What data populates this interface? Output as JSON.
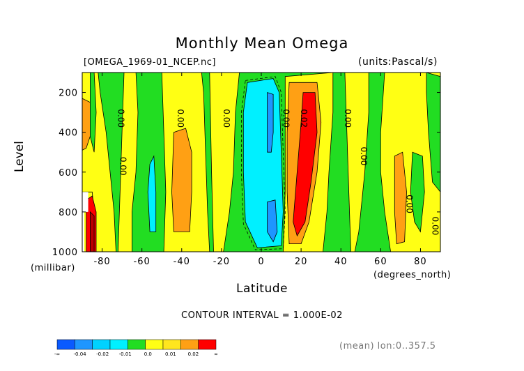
{
  "chart_data": {
    "type": "heatmap",
    "title": "Monthly Mean Omega",
    "file_label": "[OMEGA_1969-01_NCEP.nc]",
    "units_label": "(units:Pascal/s)",
    "xlabel": "Latitude",
    "xunit": "(degrees_north)",
    "ylabel": "Level",
    "yunit": "(millibar)",
    "xlim": [
      -90,
      90
    ],
    "ylim": [
      1000,
      100
    ],
    "x_ticks": [
      -80,
      -60,
      -40,
      -20,
      0,
      20,
      40,
      60,
      80
    ],
    "x_tick_labels": [
      "-80",
      "-60",
      "-40",
      "-20",
      "0",
      "20",
      "40",
      "60",
      "80"
    ],
    "y_ticks": [
      200,
      400,
      600,
      800,
      1000
    ],
    "y_tick_labels": [
      "200",
      "400",
      "600",
      "800",
      "1000"
    ],
    "contour_interval_label": "CONTOUR INTERVAL = 1.000E-02",
    "footer_label": "(mean) lon:0..357.5",
    "contour_labels": [
      {
        "lat": -72,
        "level": 330,
        "text": "0.00"
      },
      {
        "lat": -71,
        "level": 570,
        "text": "0.00"
      },
      {
        "lat": -42,
        "level": 330,
        "text": "0.00"
      },
      {
        "lat": -19,
        "level": 330,
        "text": "0.00"
      },
      {
        "lat": 11,
        "level": 330,
        "text": "0.00"
      },
      {
        "lat": 20,
        "level": 330,
        "text": "0.02"
      },
      {
        "lat": 42,
        "level": 330,
        "text": "0.00"
      },
      {
        "lat": 50,
        "level": 520,
        "text": "0.00"
      },
      {
        "lat": 73,
        "level": 760,
        "text": "0.00"
      },
      {
        "lat": 86,
        "level": 870,
        "text": "0.00"
      }
    ],
    "colorbar": {
      "colors": [
        "#0a5aff",
        "#1e96ff",
        "#00d2ff",
        "#00f0ff",
        "#22dd22",
        "#ffff14",
        "#ffe61e",
        "#ffa014",
        "#ff0000"
      ],
      "tick_labels": [
        "-∞",
        "-0.04",
        "-0.02",
        "-0.01",
        "0.0",
        "0.01",
        "0.02",
        "∞"
      ]
    },
    "levels": {
      "green": "#22dd22",
      "yellow": "#ffff14",
      "orange": "#ffa014",
      "red": "#ff0000",
      "darkred": "#bb0000",
      "cyan": "#00f0ff",
      "blue": "#1e96ff"
    }
  }
}
